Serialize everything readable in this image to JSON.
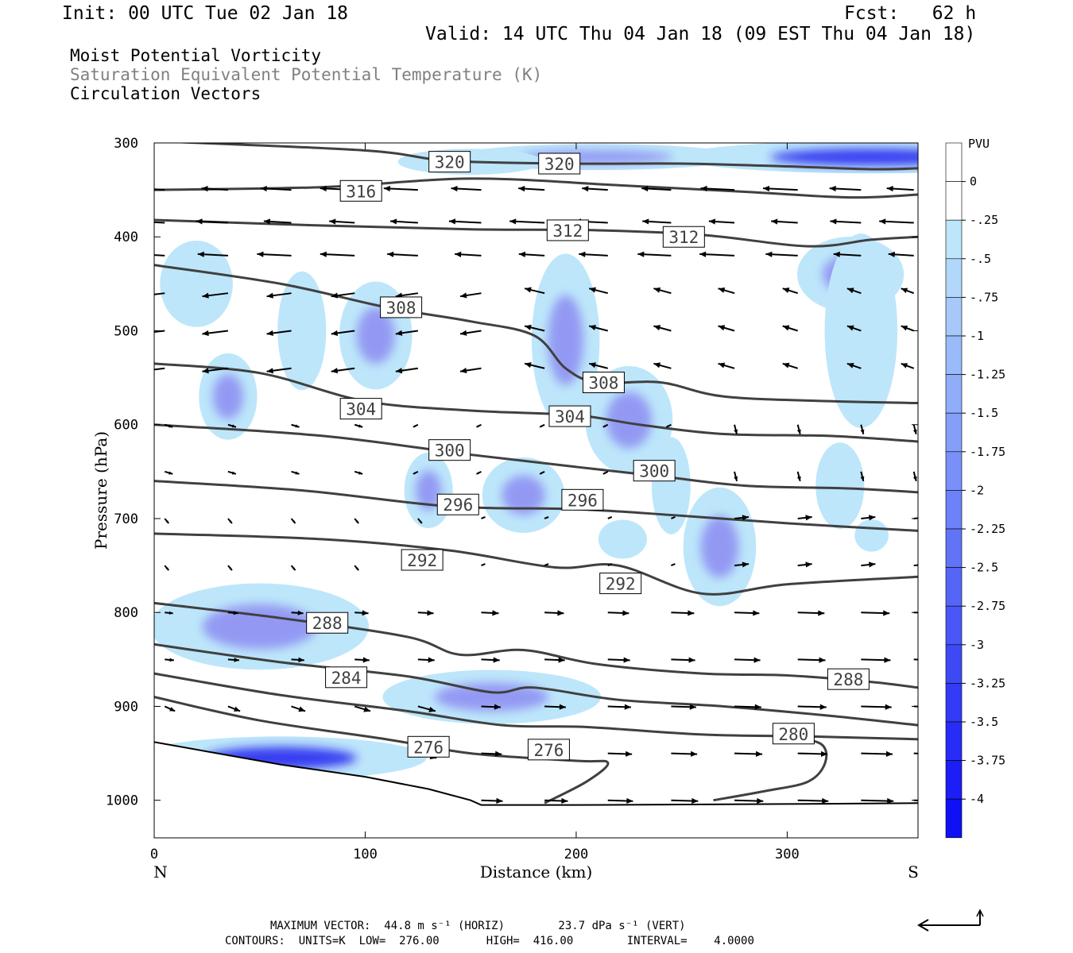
{
  "header": {
    "init": "Init: 00 UTC Tue 02 Jan 18",
    "fcst": "Fcst:   62 h",
    "valid": "Valid: 14 UTC Thu 04 Jan 18 (09 EST Thu 04 Jan 18)",
    "field1": "Moist Potential Vorticity",
    "field2": "Saturation Equivalent Potential Temperature (K)",
    "field3": "Circulation Vectors"
  },
  "footer": {
    "line1": "MAXIMUM VECTOR:  44.8 m s⁻¹ (HORIZ)        23.7 dPa s⁻¹ (VERT)",
    "line2": "CONTOURS:  UNITS=K  LOW=  276.00       HIGH=  416.00        INTERVAL=    4.0000"
  },
  "colors": {
    "pv_light": "#bde6fa",
    "pv_mid": "#8c8cf2",
    "pv_strong": "#2020f0",
    "contour": "#404040",
    "vector": "#000000"
  },
  "chart_data": {
    "type": "contour",
    "xlabel": "Distance (km)",
    "ylabel": "Pressure (hPa)",
    "xlim": [
      0,
      362
    ],
    "ylim": [
      1040,
      300
    ],
    "x_ticks": [
      0,
      100,
      200,
      300
    ],
    "y_ticks": [
      300,
      400,
      500,
      600,
      700,
      800,
      900,
      1000
    ],
    "left_end_label": "N",
    "right_end_label": "S",
    "colorbar": {
      "unit": "PVU",
      "levels": [
        0,
        -0.25,
        -0.5,
        -0.75,
        -1,
        -1.25,
        -1.5,
        -1.75,
        -2,
        -2.25,
        -2.5,
        -2.75,
        -3,
        -3.25,
        -3.5,
        -3.75,
        -4
      ],
      "labels": [
        "0",
        "-.25",
        "-.5",
        "-.75",
        "-1",
        "-1.25",
        "-1.5",
        "-1.75",
        "-2",
        "-2.25",
        "-2.5",
        "-2.75",
        "-3",
        "-3.25",
        "-3.5",
        "-3.75",
        "-4"
      ]
    },
    "contours": [
      {
        "level": 320,
        "points": [
          [
            0,
            298
          ],
          [
            100,
            308
          ],
          [
            140,
            319
          ],
          [
            200,
            322
          ],
          [
            250,
            322
          ],
          [
            300,
            325
          ],
          [
            340,
            328
          ],
          [
            362,
            327
          ]
        ]
      },
      {
        "level": 316,
        "points": [
          [
            0,
            350
          ],
          [
            80,
            347
          ],
          [
            150,
            338
          ],
          [
            220,
            345
          ],
          [
            280,
            352
          ],
          [
            330,
            358
          ],
          [
            362,
            355
          ]
        ]
      },
      {
        "level": 312,
        "points": [
          [
            0,
            382
          ],
          [
            80,
            388
          ],
          [
            150,
            392
          ],
          [
            210,
            393
          ],
          [
            260,
            398
          ],
          [
            310,
            410
          ],
          [
            340,
            403
          ],
          [
            362,
            400
          ]
        ]
      },
      {
        "level": 308,
        "points": [
          [
            0,
            430
          ],
          [
            60,
            450
          ],
          [
            110,
            475
          ],
          [
            150,
            490
          ],
          [
            180,
            505
          ],
          [
            195,
            540
          ],
          [
            210,
            555
          ],
          [
            240,
            555
          ],
          [
            270,
            570
          ],
          [
            320,
            575
          ],
          [
            362,
            577
          ]
        ]
      },
      {
        "level": 304,
        "points": [
          [
            0,
            535
          ],
          [
            50,
            545
          ],
          [
            100,
            575
          ],
          [
            150,
            585
          ],
          [
            200,
            590
          ],
          [
            230,
            600
          ],
          [
            270,
            610
          ],
          [
            320,
            612
          ],
          [
            362,
            618
          ]
        ]
      },
      {
        "level": 300,
        "points": [
          [
            0,
            600
          ],
          [
            80,
            612
          ],
          [
            150,
            632
          ],
          [
            200,
            645
          ],
          [
            240,
            655
          ],
          [
            280,
            665
          ],
          [
            330,
            668
          ],
          [
            362,
            672
          ]
        ]
      },
      {
        "level": 296,
        "points": [
          [
            0,
            660
          ],
          [
            70,
            670
          ],
          [
            140,
            687
          ],
          [
            200,
            690
          ],
          [
            250,
            697
          ],
          [
            300,
            705
          ],
          [
            362,
            713
          ]
        ]
      },
      {
        "level": 292,
        "points": [
          [
            0,
            716
          ],
          [
            80,
            722
          ],
          [
            140,
            734
          ],
          [
            190,
            752
          ],
          [
            220,
            750
          ],
          [
            260,
            780
          ],
          [
            300,
            770
          ],
          [
            362,
            762
          ]
        ]
      },
      {
        "level": 288,
        "points": [
          [
            0,
            790
          ],
          [
            60,
            806
          ],
          [
            120,
            826
          ],
          [
            145,
            845
          ],
          [
            175,
            840
          ],
          [
            210,
            855
          ],
          [
            260,
            865
          ],
          [
            300,
            867
          ],
          [
            340,
            874
          ],
          [
            362,
            880
          ]
        ]
      },
      {
        "level": 284,
        "points": [
          [
            0,
            834
          ],
          [
            60,
            853
          ],
          [
            120,
            868
          ],
          [
            160,
            885
          ],
          [
            180,
            880
          ],
          [
            220,
            893
          ],
          [
            270,
            900
          ],
          [
            320,
            910
          ],
          [
            362,
            920
          ]
        ]
      },
      {
        "level": 280,
        "points": [
          [
            0,
            865
          ],
          [
            60,
            888
          ],
          [
            120,
            905
          ],
          [
            165,
            920
          ],
          [
            205,
            922
          ],
          [
            260,
            930
          ],
          [
            310,
            932
          ],
          [
            362,
            935
          ]
        ]
      },
      {
        "level": 276,
        "points": [
          [
            0,
            890
          ],
          [
            50,
            915
          ],
          [
            110,
            935
          ],
          [
            150,
            950
          ],
          [
            200,
            958
          ],
          [
            215,
            960
          ],
          [
            205,
            980
          ],
          [
            185,
            1003
          ]
        ]
      },
      {
        "level": 280,
        "points": [
          [
            265,
            1000
          ],
          [
            290,
            990
          ],
          [
            310,
            980
          ],
          [
            318,
            960
          ],
          [
            316,
            940
          ],
          [
            300,
            932
          ]
        ]
      }
    ],
    "contour_labels": [
      {
        "level": "320",
        "x": 140,
        "p": 320
      },
      {
        "level": "320",
        "x": 192,
        "p": 322
      },
      {
        "level": "316",
        "x": 98,
        "p": 351
      },
      {
        "level": "312",
        "x": 196,
        "p": 393
      },
      {
        "level": "312",
        "x": 251,
        "p": 400
      },
      {
        "level": "308",
        "x": 117,
        "p": 475
      },
      {
        "level": "308",
        "x": 213,
        "p": 555
      },
      {
        "level": "304",
        "x": 98,
        "p": 583
      },
      {
        "level": "304",
        "x": 197,
        "p": 591
      },
      {
        "level": "300",
        "x": 140,
        "p": 627
      },
      {
        "level": "300",
        "x": 237,
        "p": 649
      },
      {
        "level": "296",
        "x": 144,
        "p": 685
      },
      {
        "level": "296",
        "x": 203,
        "p": 680
      },
      {
        "level": "292",
        "x": 127,
        "p": 744
      },
      {
        "level": "292",
        "x": 221,
        "p": 769
      },
      {
        "level": "288",
        "x": 82,
        "p": 811
      },
      {
        "level": "288",
        "x": 329,
        "p": 871
      },
      {
        "level": "284",
        "x": 91,
        "p": 869
      },
      {
        "level": "280",
        "x": 303,
        "p": 929
      },
      {
        "level": "276",
        "x": 130,
        "p": 943
      },
      {
        "level": "276",
        "x": 187,
        "p": 946
      }
    ],
    "pv_regions": [
      {
        "x": 340,
        "p": 315,
        "rx": 80,
        "rp": 15,
        "pvu": -3.25
      },
      {
        "x": 210,
        "p": 315,
        "rx": 60,
        "rp": 12,
        "pvu": -2.0
      },
      {
        "x": 150,
        "p": 320,
        "rx": 30,
        "rp": 12,
        "pvu": -0.75
      },
      {
        "x": 330,
        "p": 440,
        "rx": 22,
        "rp": 35,
        "pvu": -2.0
      },
      {
        "x": 335,
        "p": 500,
        "rx": 15,
        "rp": 90,
        "pvu": -0.5
      },
      {
        "x": 195,
        "p": 510,
        "rx": 14,
        "rp": 80,
        "pvu": -2.25
      },
      {
        "x": 105,
        "p": 505,
        "rx": 15,
        "rp": 50,
        "pvu": -1.25
      },
      {
        "x": 70,
        "p": 500,
        "rx": 10,
        "rp": 55,
        "pvu": -0.75
      },
      {
        "x": 35,
        "p": 570,
        "rx": 12,
        "rp": 40,
        "pvu": -1.5
      },
      {
        "x": 225,
        "p": 595,
        "rx": 18,
        "rp": 50,
        "pvu": -1.25
      },
      {
        "x": 245,
        "p": 665,
        "rx": 8,
        "rp": 45,
        "pvu": -1.0
      },
      {
        "x": 130,
        "p": 670,
        "rx": 10,
        "rp": 35,
        "pvu": -2.0
      },
      {
        "x": 175,
        "p": 675,
        "rx": 17,
        "rp": 35,
        "pvu": -2.0
      },
      {
        "x": 268,
        "p": 730,
        "rx": 15,
        "rp": 55,
        "pvu": -2.25
      },
      {
        "x": 50,
        "p": 815,
        "rx": 45,
        "rp": 40,
        "pvu": -1.75
      },
      {
        "x": 160,
        "p": 890,
        "rx": 45,
        "rp": 25,
        "pvu": -2.25
      },
      {
        "x": 60,
        "p": 955,
        "rx": 60,
        "rp": 20,
        "pvu": -3.75
      },
      {
        "x": 20,
        "p": 450,
        "rx": 15,
        "rp": 40,
        "pvu": -0.5
      },
      {
        "x": 325,
        "p": 665,
        "rx": 10,
        "rp": 40,
        "pvu": -0.5
      },
      {
        "x": 340,
        "p": 718,
        "rx": 7,
        "rp": 15,
        "pvu": -1.0
      },
      {
        "x": 222,
        "p": 722,
        "rx": 10,
        "rp": 18,
        "pvu": -0.5
      }
    ],
    "vectors_summary": "Upper levels (300-600 hPa): flow toward N (westward arrows); lower levels (750-1000 hPa): flow toward S (eastward arrows)",
    "annotations": [
      "MAXIMUM VECTOR",
      "CONTOURS"
    ]
  }
}
